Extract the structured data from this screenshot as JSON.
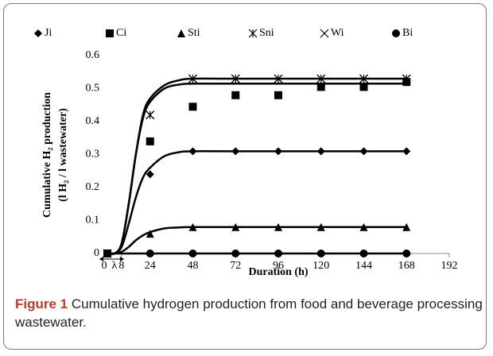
{
  "chart_data": {
    "type": "scatter",
    "xlabel": "Duration (h)",
    "ylabel": [
      "Cumulative H₂ production",
      "(l H₂ / l wastewater)"
    ],
    "annotation": "λ",
    "xlim": [
      0,
      192
    ],
    "xticks": [
      0,
      8,
      24,
      48,
      72,
      96,
      120,
      144,
      168,
      192
    ],
    "ylim": [
      0,
      0.6
    ],
    "yticks": [
      0,
      0.1,
      0.2,
      0.3,
      0.4,
      0.5,
      0.6
    ],
    "x": [
      0,
      24,
      48,
      72,
      96,
      120,
      144,
      168
    ],
    "series": [
      {
        "name": "Ji",
        "marker": "diamond",
        "color": "#000000",
        "values": [
          0,
          0.24,
          0.31,
          0.31,
          0.31,
          0.31,
          0.31,
          0.31
        ]
      },
      {
        "name": "Ci",
        "marker": "square",
        "color": "#000000",
        "values": [
          0,
          0.34,
          0.445,
          0.48,
          0.48,
          0.505,
          0.505,
          0.52
        ]
      },
      {
        "name": "Sti",
        "marker": "triangle",
        "color": "#000000",
        "values": [
          0,
          0.06,
          0.08,
          0.08,
          0.08,
          0.08,
          0.08,
          0.08
        ]
      },
      {
        "name": "Sni",
        "marker": "asterisk",
        "color": "#000000",
        "values": [
          0,
          0.42,
          0.53,
          0.53,
          0.53,
          0.53,
          0.53,
          0.53
        ]
      },
      {
        "name": "Wi",
        "marker": "x",
        "color": "#000000",
        "values": [
          0,
          0.42,
          0.53,
          0.53,
          0.53,
          0.53,
          0.53,
          0.53
        ]
      },
      {
        "name": "Bi",
        "marker": "circle",
        "color": "#000000",
        "values": [
          0,
          0,
          0,
          0,
          0,
          0,
          0,
          0
        ]
      }
    ],
    "curves_x": [
      0,
      4,
      8,
      12,
      16,
      20,
      24,
      32,
      40,
      48,
      72,
      168
    ],
    "curves": [
      [
        0,
        0,
        0.03,
        0.15,
        0.3,
        0.42,
        0.47,
        0.51,
        0.525,
        0.53,
        0.53,
        0.53
      ],
      [
        0,
        0,
        0.03,
        0.15,
        0.3,
        0.41,
        0.46,
        0.5,
        0.512,
        0.515,
        0.515,
        0.515
      ],
      [
        0,
        0,
        0.02,
        0.09,
        0.17,
        0.23,
        0.26,
        0.295,
        0.307,
        0.31,
        0.31,
        0.31
      ],
      [
        0,
        0,
        0.005,
        0.02,
        0.04,
        0.055,
        0.065,
        0.076,
        0.079,
        0.08,
        0.08,
        0.08
      ],
      [
        0,
        0,
        0,
        0,
        0,
        0,
        0,
        0,
        0,
        0,
        0,
        0
      ]
    ]
  },
  "caption": {
    "label": "Figure 1",
    "text": "Cumulative hydrogen production from food and beverage processing wastewater."
  }
}
